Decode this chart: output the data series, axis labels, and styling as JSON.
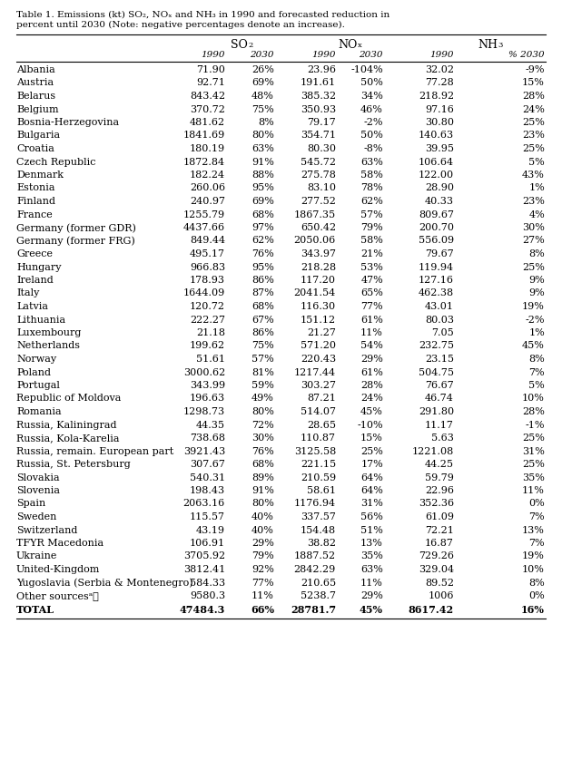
{
  "rows": [
    [
      "Albania",
      "71.90",
      "26%",
      "23.96",
      "-104%",
      "32.02",
      "-9%"
    ],
    [
      "Austria",
      "92.71",
      "69%",
      "191.61",
      "50%",
      "77.28",
      "15%"
    ],
    [
      "Belarus",
      "843.42",
      "48%",
      "385.32",
      "34%",
      "218.92",
      "28%"
    ],
    [
      "Belgium",
      "370.72",
      "75%",
      "350.93",
      "46%",
      "97.16",
      "24%"
    ],
    [
      "Bosnia-Herzegovina",
      "481.62",
      "8%",
      "79.17",
      "-2%",
      "30.80",
      "25%"
    ],
    [
      "Bulgaria",
      "1841.69",
      "80%",
      "354.71",
      "50%",
      "140.63",
      "23%"
    ],
    [
      "Croatia",
      "180.19",
      "63%",
      "80.30",
      "-8%",
      "39.95",
      "25%"
    ],
    [
      "Czech Republic",
      "1872.84",
      "91%",
      "545.72",
      "63%",
      "106.64",
      "5%"
    ],
    [
      "Denmark",
      "182.24",
      "88%",
      "275.78",
      "58%",
      "122.00",
      "43%"
    ],
    [
      "Estonia",
      "260.06",
      "95%",
      "83.10",
      "78%",
      "28.90",
      "1%"
    ],
    [
      "Finland",
      "240.97",
      "69%",
      "277.52",
      "62%",
      "40.33",
      "23%"
    ],
    [
      "France",
      "1255.79",
      "68%",
      "1867.35",
      "57%",
      "809.67",
      "4%"
    ],
    [
      "Germany (former GDR)",
      "4437.66",
      "97%",
      "650.42",
      "79%",
      "200.70",
      "30%"
    ],
    [
      "Germany (former FRG)",
      "849.44",
      "62%",
      "2050.06",
      "58%",
      "556.09",
      "27%"
    ],
    [
      "Greece",
      "495.17",
      "76%",
      "343.97",
      "21%",
      "79.67",
      "8%"
    ],
    [
      "Hungary",
      "966.83",
      "95%",
      "218.28",
      "53%",
      "119.94",
      "25%"
    ],
    [
      "Ireland",
      "178.93",
      "86%",
      "117.20",
      "47%",
      "127.16",
      "9%"
    ],
    [
      "Italy",
      "1644.09",
      "87%",
      "2041.54",
      "65%",
      "462.38",
      "9%"
    ],
    [
      "Latvia",
      "120.72",
      "68%",
      "116.30",
      "77%",
      "43.01",
      "19%"
    ],
    [
      "Lithuania",
      "222.27",
      "67%",
      "151.12",
      "61%",
      "80.03",
      "-2%"
    ],
    [
      "Luxembourg",
      "21.18",
      "86%",
      "21.27",
      "11%",
      "7.05",
      "1%"
    ],
    [
      "Netherlands",
      "199.62",
      "75%",
      "571.20",
      "54%",
      "232.75",
      "45%"
    ],
    [
      "Norway",
      "51.61",
      "57%",
      "220.43",
      "29%",
      "23.15",
      "8%"
    ],
    [
      "Poland",
      "3000.62",
      "81%",
      "1217.44",
      "61%",
      "504.75",
      "7%"
    ],
    [
      "Portugal",
      "343.99",
      "59%",
      "303.27",
      "28%",
      "76.67",
      "5%"
    ],
    [
      "Republic of Moldova",
      "196.63",
      "49%",
      "87.21",
      "24%",
      "46.74",
      "10%"
    ],
    [
      "Romania",
      "1298.73",
      "80%",
      "514.07",
      "45%",
      "291.80",
      "28%"
    ],
    [
      "Russia, Kaliningrad",
      "44.35",
      "72%",
      "28.65",
      "-10%",
      "11.17",
      "-1%"
    ],
    [
      "Russia, Kola-Karelia",
      "738.68",
      "30%",
      "110.87",
      "15%",
      "5.63",
      "25%"
    ],
    [
      "Russia, remain. European part",
      "3921.43",
      "76%",
      "3125.58",
      "25%",
      "1221.08",
      "31%"
    ],
    [
      "Russia, St. Petersburg",
      "307.67",
      "68%",
      "221.15",
      "17%",
      "44.25",
      "25%"
    ],
    [
      "Slovakia",
      "540.31",
      "89%",
      "210.59",
      "64%",
      "59.79",
      "35%"
    ],
    [
      "Slovenia",
      "198.43",
      "91%",
      "58.61",
      "64%",
      "22.96",
      "11%"
    ],
    [
      "Spain",
      "2063.16",
      "80%",
      "1176.94",
      "31%",
      "352.36",
      "0%"
    ],
    [
      "Sweden",
      "115.57",
      "40%",
      "337.57",
      "56%",
      "61.09",
      "7%"
    ],
    [
      "Switzerland",
      "43.19",
      "40%",
      "154.48",
      "51%",
      "72.21",
      "13%"
    ],
    [
      "TFYR Macedonia",
      "106.91",
      "29%",
      "38.82",
      "13%",
      "16.87",
      "7%"
    ],
    [
      "Ukraine",
      "3705.92",
      "79%",
      "1887.52",
      "35%",
      "729.26",
      "19%"
    ],
    [
      "United-Kingdom",
      "3812.41",
      "92%",
      "2842.29",
      "63%",
      "329.04",
      "10%"
    ],
    [
      "Yugoslavia (Serbia & Montenegro)",
      "584.33",
      "77%",
      "210.65",
      "11%",
      "89.52",
      "8%"
    ],
    [
      "Other sourcesᵃ⧠",
      "9580.3",
      "11%",
      "5238.7",
      "29%",
      "1006",
      "0%"
    ],
    [
      "TOTAL",
      "47484.3",
      "66%",
      "28781.7",
      "45%",
      "8617.42",
      "16%"
    ]
  ],
  "bg_color": "#ffffff",
  "text_color": "#000000",
  "font_size": 8.0,
  "header_font_size": 9.0
}
